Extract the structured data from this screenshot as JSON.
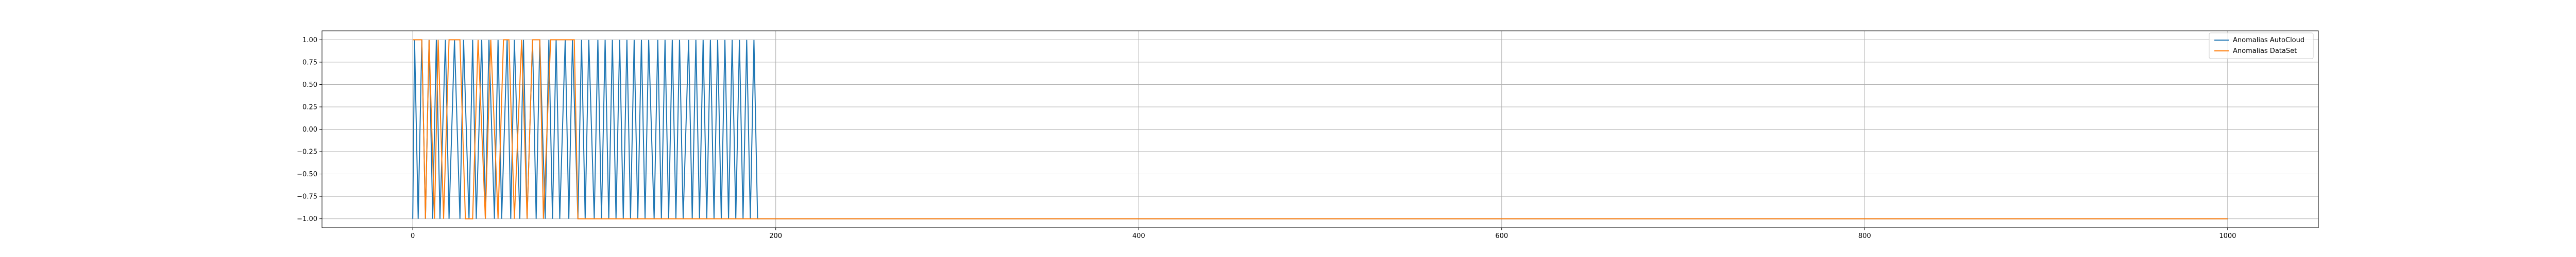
{
  "chart_data": {
    "type": "line",
    "title": "",
    "xlabel": "",
    "ylabel": "",
    "xlim": [
      -50,
      1050
    ],
    "ylim": [
      -1.1,
      1.1
    ],
    "grid": true,
    "legend_position": "top-right",
    "x_ticks": [
      0,
      200,
      400,
      600,
      800,
      1000
    ],
    "x_tick_labels": [
      "0",
      "200",
      "400",
      "600",
      "800",
      "1000"
    ],
    "y_ticks": [
      1.0,
      0.75,
      0.5,
      0.25,
      0.0,
      -0.25,
      -0.5,
      -0.75,
      -1.0
    ],
    "y_tick_labels": [
      "1.00",
      "0.75",
      "0.50",
      "0.25",
      "0.00",
      "−0.25",
      "−0.50",
      "−0.75",
      "−1.00"
    ],
    "series": [
      {
        "name": "Anomalias AutoCloud",
        "color": "#1f77b4",
        "x": [
          0,
          1,
          3,
          5,
          7,
          9,
          11,
          13,
          15,
          18,
          20,
          23,
          26,
          28,
          31,
          33,
          35,
          38,
          40,
          42,
          45,
          47,
          49,
          52,
          54,
          56,
          59,
          61,
          63,
          66,
          68,
          70,
          73,
          75,
          77,
          79,
          81,
          84,
          86,
          88,
          91,
          93,
          95,
          97,
          100,
          102,
          104,
          106,
          108,
          110,
          112,
          114,
          116,
          118,
          120,
          122,
          124,
          126,
          128,
          130,
          133,
          135,
          137,
          139,
          141,
          143,
          145,
          147,
          149,
          152,
          154,
          156,
          158,
          160,
          162,
          164,
          166,
          168,
          170,
          172,
          174,
          176,
          178,
          180,
          182,
          184,
          186,
          188,
          190,
          1000
        ],
        "y": [
          -1,
          1,
          -1,
          1,
          -1,
          1,
          -1,
          1,
          -1,
          1,
          -1,
          1,
          -1,
          1,
          -1,
          1,
          -1,
          1,
          -1,
          1,
          -1,
          1,
          -1,
          1,
          -1,
          1,
          -1,
          1,
          -1,
          1,
          -1,
          1,
          -1,
          1,
          -1,
          1,
          -1,
          1,
          -1,
          1,
          -1,
          1,
          -1,
          1,
          -1,
          1,
          -1,
          1,
          -1,
          1,
          -1,
          1,
          -1,
          1,
          -1,
          1,
          -1,
          1,
          -1,
          1,
          -1,
          1,
          -1,
          1,
          -1,
          1,
          -1,
          1,
          -1,
          1,
          -1,
          1,
          -1,
          1,
          -1,
          1,
          -1,
          1,
          -1,
          1,
          -1,
          1,
          -1,
          1,
          -1,
          1,
          -1,
          1,
          -1,
          -1
        ]
      },
      {
        "name": "Anomalias DataSet",
        "color": "#ff7f0e",
        "x": [
          0,
          5,
          7,
          9,
          12,
          14,
          17,
          20,
          26,
          29,
          33,
          36,
          40,
          43,
          47,
          50,
          53,
          56,
          60,
          63,
          66,
          70,
          72,
          76,
          80,
          83,
          86,
          89,
          91,
          95,
          98,
          101,
          1000
        ],
        "y": [
          1,
          1,
          -1,
          1,
          -1,
          1,
          -1,
          1,
          1,
          -1,
          -1,
          1,
          -1,
          1,
          -1,
          1,
          1,
          -1,
          1,
          -1,
          1,
          1,
          -1,
          1,
          1,
          1,
          1,
          1,
          -1,
          -1,
          -1,
          -1,
          -1
        ]
      }
    ]
  }
}
